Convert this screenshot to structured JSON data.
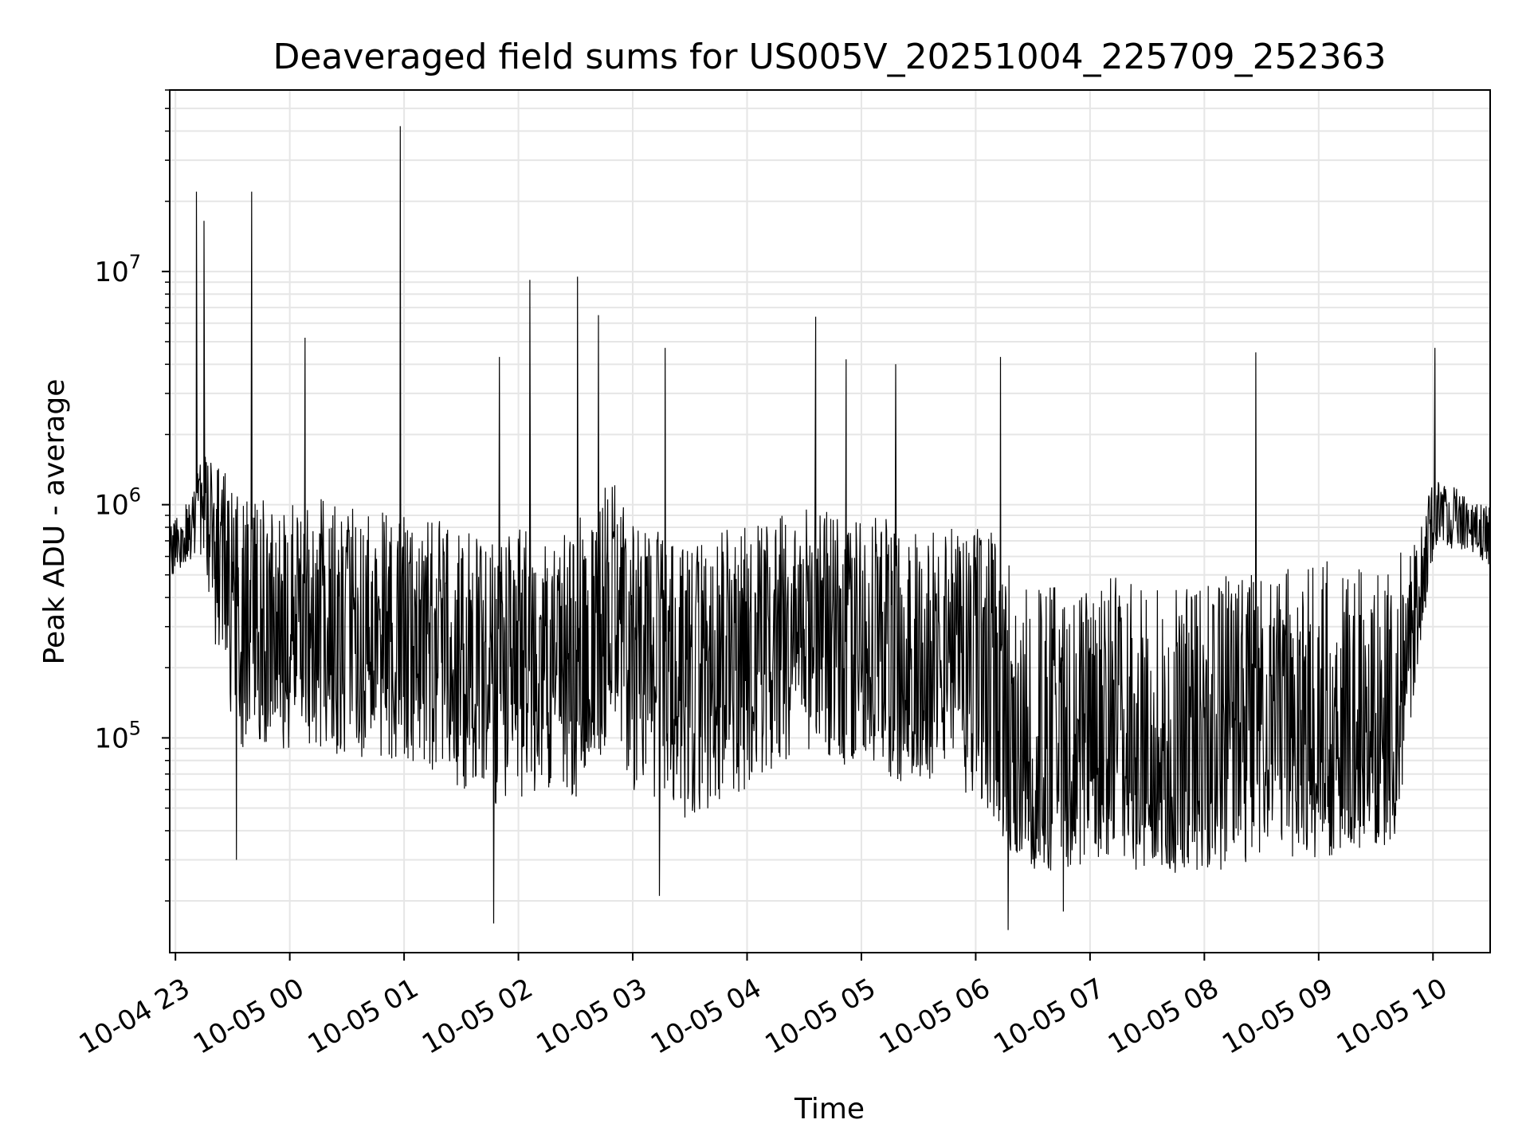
{
  "chart_data": {
    "type": "line",
    "title": "Deaveraged field sums for US005V_20251004_225709_252363",
    "xlabel": "Time",
    "ylabel": "Peak ADU - average",
    "yscale": "log",
    "ylim": [
      12000,
      60000000
    ],
    "xlim": [
      "2025-10-04 22:57",
      "2025-10-05 10:30"
    ],
    "x_ticks": [
      {
        "at": "2025-10-04 23:00",
        "label": "10-04 23"
      },
      {
        "at": "2025-10-05 00:00",
        "label": "10-05 00"
      },
      {
        "at": "2025-10-05 01:00",
        "label": "10-05 01"
      },
      {
        "at": "2025-10-05 02:00",
        "label": "10-05 02"
      },
      {
        "at": "2025-10-05 03:00",
        "label": "10-05 03"
      },
      {
        "at": "2025-10-05 04:00",
        "label": "10-05 04"
      },
      {
        "at": "2025-10-05 05:00",
        "label": "10-05 05"
      },
      {
        "at": "2025-10-05 06:00",
        "label": "10-05 06"
      },
      {
        "at": "2025-10-05 07:00",
        "label": "10-05 07"
      },
      {
        "at": "2025-10-05 08:00",
        "label": "10-05 08"
      },
      {
        "at": "2025-10-05 09:00",
        "label": "10-05 09"
      },
      {
        "at": "2025-10-05 10:00",
        "label": "10-05 10"
      }
    ],
    "y_ticks": [
      {
        "value": 100000,
        "base": "10",
        "exp": "5"
      },
      {
        "value": 1000000,
        "base": "10",
        "exp": "6"
      },
      {
        "value": 10000000,
        "base": "10",
        "exp": "7"
      }
    ],
    "grid": true,
    "line_color": "#000000",
    "series": [
      {
        "x": [
          "2025-10-04 22:57",
          "2025-10-04 23:05",
          "2025-10-04 23:10",
          "2025-10-04 23:15",
          "2025-10-04 23:20",
          "2025-10-04 23:25",
          "2025-10-04 23:30",
          "2025-10-04 23:35",
          "2025-10-04 23:40",
          "2025-10-04 23:45",
          "2025-10-04 23:50",
          "2025-10-04 23:55",
          "2025-10-05 00:00",
          "2025-10-05 00:10",
          "2025-10-05 00:20",
          "2025-10-05 00:30",
          "2025-10-05 00:40",
          "2025-10-05 00:50",
          "2025-10-05 01:00",
          "2025-10-05 01:10",
          "2025-10-05 01:20",
          "2025-10-05 01:30",
          "2025-10-05 01:40",
          "2025-10-05 01:50",
          "2025-10-05 02:00",
          "2025-10-05 02:10",
          "2025-10-05 02:20",
          "2025-10-05 02:30",
          "2025-10-05 02:40",
          "2025-10-05 02:50",
          "2025-10-05 03:00",
          "2025-10-05 03:10",
          "2025-10-05 03:20",
          "2025-10-05 03:30",
          "2025-10-05 03:40",
          "2025-10-05 03:50",
          "2025-10-05 04:00",
          "2025-10-05 04:10",
          "2025-10-05 04:20",
          "2025-10-05 04:30",
          "2025-10-05 04:40",
          "2025-10-05 04:50",
          "2025-10-05 05:00",
          "2025-10-05 05:10",
          "2025-10-05 05:20",
          "2025-10-05 05:30",
          "2025-10-05 05:40",
          "2025-10-05 05:50",
          "2025-10-05 06:00",
          "2025-10-05 06:10",
          "2025-10-05 06:20",
          "2025-10-05 06:30",
          "2025-10-05 06:40",
          "2025-10-05 06:50",
          "2025-10-05 07:00",
          "2025-10-05 07:10",
          "2025-10-05 07:20",
          "2025-10-05 07:30",
          "2025-10-05 07:40",
          "2025-10-05 07:50",
          "2025-10-05 08:00",
          "2025-10-05 08:10",
          "2025-10-05 08:20",
          "2025-10-05 08:30",
          "2025-10-05 08:40",
          "2025-10-05 08:50",
          "2025-10-05 09:00",
          "2025-10-05 09:10",
          "2025-10-05 09:20",
          "2025-10-05 09:30",
          "2025-10-05 09:40",
          "2025-10-05 09:50",
          "2025-10-05 10:00",
          "2025-10-05 10:10",
          "2025-10-05 10:20",
          "2025-10-05 10:30"
        ],
        "y": [
          650000,
          750000,
          900000,
          1100000,
          700000,
          500000,
          400000,
          350000,
          330000,
          320000,
          310000,
          300000,
          300000,
          300000,
          290000,
          290000,
          280000,
          280000,
          270000,
          260000,
          240000,
          200000,
          190000,
          180000,
          200000,
          220000,
          210000,
          200000,
          350000,
          400000,
          250000,
          180000,
          150000,
          150000,
          180000,
          200000,
          220000,
          280000,
          300000,
          350000,
          320000,
          280000,
          260000,
          260000,
          250000,
          240000,
          250000,
          230000,
          220000,
          180000,
          90000,
          70000,
          70000,
          80000,
          90000,
          85000,
          80000,
          75000,
          70000,
          70000,
          70000,
          80000,
          80000,
          80000,
          90000,
          100000,
          110000,
          110000,
          100000,
          110000,
          130000,
          400000,
          900000,
          950000,
          850000,
          800000
        ],
        "upper": [
          800000,
          1000000,
          1200000,
          2000000,
          1500000,
          1400000,
          1300000,
          1200000,
          1200000,
          1100000,
          1100000,
          1000000,
          1000000,
          1000000,
          1100000,
          1000000,
          1000000,
          950000,
          900000,
          900000,
          900000,
          800000,
          700000,
          700000,
          800000,
          900000,
          850000,
          800000,
          1200000,
          1300000,
          900000,
          800000,
          700000,
          700000,
          750000,
          800000,
          850000,
          900000,
          950000,
          1000000,
          1000000,
          950000,
          900000,
          900000,
          850000,
          850000,
          850000,
          800000,
          800000,
          750000,
          500000,
          450000,
          450000,
          480000,
          500000,
          500000,
          480000,
          450000,
          450000,
          450000,
          450000,
          500000,
          500000,
          500000,
          520000,
          550000,
          580000,
          580000,
          560000,
          580000,
          600000,
          700000,
          1300000,
          1200000,
          1100000,
          1000000
        ],
        "lower": [
          450000,
          550000,
          600000,
          600000,
          300000,
          120000,
          100000,
          90000,
          90000,
          90000,
          90000,
          90000,
          90000,
          90000,
          85000,
          85000,
          80000,
          80000,
          80000,
          75000,
          70000,
          60000,
          55000,
          50000,
          55000,
          60000,
          60000,
          55000,
          80000,
          90000,
          60000,
          50000,
          45000,
          45000,
          50000,
          55000,
          60000,
          70000,
          80000,
          90000,
          85000,
          75000,
          70000,
          70000,
          65000,
          60000,
          65000,
          60000,
          55000,
          45000,
          30000,
          27000,
          26000,
          27000,
          28000,
          28000,
          27000,
          27000,
          26000,
          26000,
          26000,
          27000,
          27000,
          28000,
          29000,
          30000,
          31000,
          31000,
          30000,
          31000,
          35000,
          150000,
          600000,
          650000,
          600000,
          550000
        ]
      }
    ],
    "spikes": [
      {
        "x": "2025-10-04 23:11",
        "y": 22000000
      },
      {
        "x": "2025-10-04 23:15",
        "y": 16500000
      },
      {
        "x": "2025-10-04 23:40",
        "y": 22000000
      },
      {
        "x": "2025-10-05 00:58",
        "y": 42000000
      },
      {
        "x": "2025-10-05 02:06",
        "y": 9200000
      },
      {
        "x": "2025-10-05 02:31",
        "y": 9500000
      },
      {
        "x": "2025-10-05 02:42",
        "y": 6500000
      },
      {
        "x": "2025-10-05 04:36",
        "y": 6400000
      },
      {
        "x": "2025-10-05 01:50",
        "y": 4300000
      },
      {
        "x": "2025-10-05 03:17",
        "y": 4700000
      },
      {
        "x": "2025-10-05 04:52",
        "y": 4200000
      },
      {
        "x": "2025-10-05 05:18",
        "y": 4000000
      },
      {
        "x": "2025-10-05 06:13",
        "y": 4300000
      },
      {
        "x": "2025-10-05 08:27",
        "y": 4500000
      },
      {
        "x": "2025-10-05 10:01",
        "y": 4700000
      },
      {
        "x": "2025-10-05 00:08",
        "y": 5200000
      }
    ],
    "dips": [
      {
        "x": "2025-10-05 01:47",
        "y": 16000
      },
      {
        "x": "2025-10-04 23:32",
        "y": 30000
      },
      {
        "x": "2025-10-05 06:17",
        "y": 15000
      },
      {
        "x": "2025-10-05 06:46",
        "y": 18000
      },
      {
        "x": "2025-10-05 03:14",
        "y": 21000
      }
    ]
  }
}
